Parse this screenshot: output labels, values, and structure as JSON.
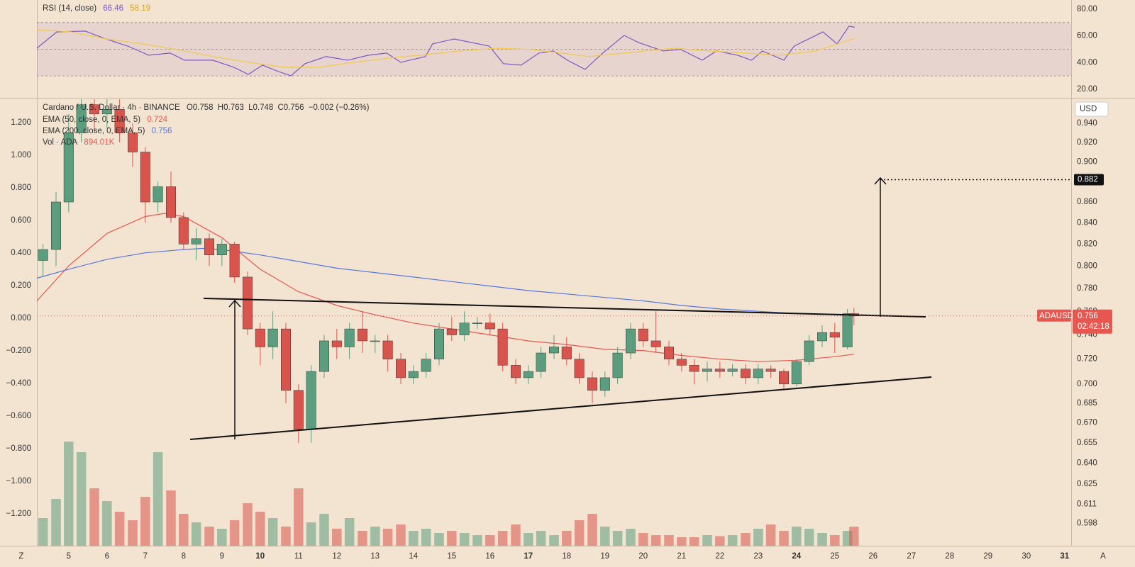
{
  "chart_data": {
    "type": "candlestick",
    "title": "Cardano / U.S. Dollar · 4h · BINANCE",
    "ohlc_legend": [
      "O0.758",
      "H0.763",
      "L0.748",
      "C0.756",
      "−0.002 (−0.26%)"
    ],
    "currency": "USD",
    "symbol": "ADAUSD",
    "last_price": 0.756,
    "countdown": "02:42:18",
    "target": 0.882,
    "footer": {
      "left": "Z",
      "right": "A"
    },
    "log_scale": true,
    "grid": false,
    "up_color": "#5b9e7f",
    "down_color": "#d9544d",
    "xlim": [
      4.17,
      31.17
    ],
    "xticks": [
      5,
      6,
      7,
      8,
      9,
      10,
      11,
      12,
      13,
      14,
      15,
      16,
      17,
      18,
      19,
      20,
      21,
      22,
      23,
      24,
      25,
      26,
      27,
      28,
      29,
      30,
      31
    ],
    "bold_xticks": [
      10,
      17,
      24,
      31
    ],
    "ylim": [
      0.583,
      0.966
    ],
    "yticks": [
      {
        "value": 0.94,
        "label": "0.940"
      },
      {
        "value": 0.92,
        "label": "0.920"
      },
      {
        "value": 0.9,
        "label": "0.900"
      },
      {
        "value": 0.88,
        "label": "0.880"
      },
      {
        "value": 0.86,
        "label": "0.860"
      },
      {
        "value": 0.84,
        "label": "0.840"
      },
      {
        "value": 0.82,
        "label": "0.820"
      },
      {
        "value": 0.8,
        "label": "0.800"
      },
      {
        "value": 0.78,
        "label": "0.780"
      },
      {
        "value": 0.76,
        "label": "0.760"
      },
      {
        "value": 0.74,
        "label": "0.740"
      },
      {
        "value": 0.72,
        "label": "0.720"
      },
      {
        "value": 0.7,
        "label": "0.700"
      },
      {
        "value": 0.685,
        "label": "0.685"
      },
      {
        "value": 0.67,
        "label": "0.670"
      },
      {
        "value": 0.655,
        "label": "0.655"
      },
      {
        "value": 0.64,
        "label": "0.640"
      },
      {
        "value": 0.625,
        "label": "0.625"
      },
      {
        "value": 0.611,
        "label": "0.611"
      },
      {
        "value": 0.598,
        "label": "0.598"
      }
    ],
    "y2lim": [
      -1.396,
      1.343
    ],
    "y2ticks": [
      {
        "value": 1.2,
        "label": "1.200"
      },
      {
        "value": 1.0,
        "label": "1.000"
      },
      {
        "value": 0.8,
        "label": "0.800"
      },
      {
        "value": 0.6,
        "label": "0.600"
      },
      {
        "value": 0.4,
        "label": "0.400"
      },
      {
        "value": 0.2,
        "label": "0.200"
      },
      {
        "value": 0,
        "label": "0.000"
      },
      {
        "value": -0.2,
        "label": "−0.200"
      },
      {
        "value": -0.4,
        "label": "−0.400"
      },
      {
        "value": -0.6,
        "label": "−0.600"
      },
      {
        "value": -0.8,
        "label": "−0.800"
      },
      {
        "value": -1.0,
        "label": "−1.000"
      },
      {
        "value": -1.2,
        "label": "−1.200"
      }
    ],
    "x": [
      4.33,
      4.67,
      5,
      5.33,
      5.67,
      6,
      6.33,
      6.67,
      7,
      7.33,
      7.67,
      8,
      8.33,
      8.67,
      9,
      9.33,
      9.67,
      10,
      10.33,
      10.67,
      11,
      11.33,
      11.67,
      12,
      12.33,
      12.67,
      13,
      13.33,
      13.67,
      14,
      14.33,
      14.67,
      15,
      15.33,
      15.67,
      16,
      16.33,
      16.67,
      17,
      17.33,
      17.67,
      18,
      18.33,
      18.67,
      19,
      19.33,
      19.67,
      20,
      20.33,
      20.67,
      21,
      21.33,
      21.67,
      22,
      22.33,
      22.67,
      23,
      23.33,
      23.67,
      24,
      24.33,
      24.67,
      25,
      25.33,
      25.5
    ],
    "open": [
      0.805,
      0.815,
      0.86,
      0.93,
      0.96,
      0.95,
      0.955,
      0.93,
      0.91,
      0.86,
      0.875,
      0.845,
      0.82,
      0.825,
      0.81,
      0.82,
      0.79,
      0.745,
      0.73,
      0.745,
      0.695,
      0.665,
      0.71,
      0.735,
      0.73,
      0.745,
      0.735,
      0.735,
      0.72,
      0.705,
      0.71,
      0.72,
      0.745,
      0.74,
      0.75,
      0.75,
      0.745,
      0.715,
      0.705,
      0.71,
      0.725,
      0.73,
      0.72,
      0.705,
      0.695,
      0.705,
      0.725,
      0.745,
      0.735,
      0.73,
      0.72,
      0.715,
      0.71,
      0.712,
      0.71,
      0.712,
      0.705,
      0.712,
      0.71,
      0.7,
      0.718,
      0.735,
      0.742,
      0.73,
      0.758
    ],
    "high": [
      0.82,
      0.87,
      0.95,
      0.966,
      0.966,
      0.966,
      0.966,
      0.94,
      0.915,
      0.88,
      0.89,
      0.85,
      0.835,
      0.83,
      0.825,
      0.822,
      0.795,
      0.75,
      0.76,
      0.75,
      0.7,
      0.715,
      0.74,
      0.745,
      0.75,
      0.76,
      0.74,
      0.74,
      0.725,
      0.715,
      0.725,
      0.75,
      0.755,
      0.76,
      0.755,
      0.758,
      0.75,
      0.72,
      0.715,
      0.73,
      0.74,
      0.738,
      0.725,
      0.71,
      0.71,
      0.73,
      0.75,
      0.75,
      0.76,
      0.735,
      0.725,
      0.72,
      0.718,
      0.718,
      0.716,
      0.716,
      0.716,
      0.715,
      0.712,
      0.72,
      0.74,
      0.748,
      0.75,
      0.762,
      0.763
    ],
    "low": [
      0.79,
      0.8,
      0.85,
      0.92,
      0.93,
      0.935,
      0.92,
      0.895,
      0.84,
      0.85,
      0.84,
      0.815,
      0.805,
      0.8,
      0.8,
      0.785,
      0.74,
      0.715,
      0.72,
      0.685,
      0.655,
      0.655,
      0.705,
      0.72,
      0.72,
      0.725,
      0.725,
      0.71,
      0.7,
      0.7,
      0.705,
      0.715,
      0.735,
      0.735,
      0.745,
      0.74,
      0.71,
      0.7,
      0.7,
      0.705,
      0.72,
      0.715,
      0.7,
      0.685,
      0.69,
      0.7,
      0.72,
      0.73,
      0.725,
      0.715,
      0.71,
      0.7,
      0.702,
      0.705,
      0.706,
      0.7,
      0.7,
      0.705,
      0.695,
      0.698,
      0.715,
      0.73,
      0.725,
      0.728,
      0.748
    ],
    "close": [
      0.815,
      0.86,
      0.93,
      0.96,
      0.95,
      0.955,
      0.93,
      0.91,
      0.86,
      0.875,
      0.845,
      0.82,
      0.825,
      0.81,
      0.82,
      0.79,
      0.745,
      0.73,
      0.745,
      0.695,
      0.665,
      0.71,
      0.735,
      0.73,
      0.745,
      0.735,
      0.735,
      0.72,
      0.705,
      0.71,
      0.72,
      0.745,
      0.74,
      0.75,
      0.75,
      0.745,
      0.715,
      0.705,
      0.71,
      0.725,
      0.73,
      0.72,
      0.705,
      0.695,
      0.705,
      0.725,
      0.745,
      0.735,
      0.73,
      0.72,
      0.715,
      0.71,
      0.712,
      0.71,
      0.712,
      0.705,
      0.712,
      0.71,
      0.7,
      0.718,
      0.735,
      0.742,
      0.738,
      0.758,
      0.756
    ],
    "indicators": [
      {
        "name": "EMA (50, close, 0, EMA, 5)",
        "value_label": "0.724",
        "color": "#e8574f",
        "x": [
          4.17,
          5,
          6,
          7,
          7.5,
          8,
          9,
          10,
          11,
          12,
          13,
          14,
          15,
          16,
          17,
          18,
          19,
          20,
          21,
          22,
          23,
          24,
          25,
          25.5
        ],
        "values": [
          0.769,
          0.8,
          0.83,
          0.846,
          0.849,
          0.846,
          0.826,
          0.797,
          0.777,
          0.765,
          0.757,
          0.75,
          0.745,
          0.74,
          0.735,
          0.732,
          0.728,
          0.727,
          0.723,
          0.72,
          0.718,
          0.719,
          0.722,
          0.724
        ]
      },
      {
        "name": "EMA (200, close, 0, EMA, 5)",
        "value_label": "0.756",
        "color": "#5677e0",
        "x": [
          4.17,
          5,
          6,
          7,
          8,
          8.5,
          9,
          10,
          11,
          12,
          13,
          14,
          15,
          16,
          17,
          18,
          19,
          20,
          21,
          22,
          23,
          24,
          25,
          25.5
        ],
        "values": [
          0.789,
          0.797,
          0.806,
          0.812,
          0.815,
          0.816,
          0.815,
          0.81,
          0.804,
          0.798,
          0.794,
          0.79,
          0.786,
          0.782,
          0.778,
          0.775,
          0.772,
          0.769,
          0.765,
          0.762,
          0.76,
          0.758,
          0.757,
          0.756
        ]
      }
    ],
    "volume": {
      "name": "Vol · ADA",
      "value_label": "894.01K",
      "ylim": [
        0,
        6000
      ],
      "values": [
        1300,
        2200,
        4900,
        4400,
        2700,
        2100,
        1600,
        1200,
        2300,
        4400,
        2600,
        1500,
        1100,
        900,
        800,
        1200,
        2000,
        1600,
        1300,
        900,
        2700,
        1100,
        1500,
        800,
        1300,
        700,
        900,
        800,
        1000,
        700,
        800,
        600,
        700,
        600,
        500,
        500,
        700,
        1000,
        600,
        700,
        500,
        700,
        1200,
        1500,
        900,
        700,
        800,
        600,
        500,
        500,
        400,
        400,
        500,
        450,
        500,
        600,
        800,
        1000,
        700,
        900,
        800,
        600,
        500,
        700,
        894.01
      ]
    },
    "rsi": {
      "title": "RSI (14, close)",
      "ylim": [
        13.6,
        86.9
      ],
      "band": [
        30,
        70
      ],
      "midline": 50,
      "band_color": "#7e57c2",
      "yticks": [
        {
          "value": 80,
          "label": "80.00"
        },
        {
          "value": 60,
          "label": "60.00"
        },
        {
          "value": 40,
          "label": "40.00"
        },
        {
          "value": 20,
          "label": "20.00"
        }
      ],
      "series": [
        {
          "value_label": "66.46",
          "color": "#7e57c2",
          "x": [
            4.17,
            4.69,
            5.43,
            5.98,
            6.54,
            7.09,
            7.65,
            8.02,
            8.76,
            9.31,
            9.69,
            10.06,
            10.43,
            10.8,
            11.17,
            11.72,
            12.28,
            12.83,
            13.3,
            13.67,
            14.31,
            14.5,
            15.06,
            15.98,
            16.35,
            16.81,
            17.28,
            17.65,
            18.02,
            18.48,
            18.94,
            19.5,
            19.87,
            20.52,
            20.98,
            21.54,
            21.91,
            22.46,
            22.83,
            23.11,
            23.67,
            23.94,
            24.69,
            25.06,
            25.37,
            25.52
          ],
          "values": [
            50.8,
            63.0,
            63.6,
            57.7,
            52.4,
            45.5,
            47.1,
            41.8,
            41.8,
            36.5,
            31.2,
            38.1,
            33.8,
            30.1,
            39.2,
            44.5,
            41.8,
            45.5,
            47.1,
            40.2,
            44.5,
            54.0,
            57.7,
            52.4,
            39.2,
            38.1,
            47.1,
            48.7,
            41.8,
            34.9,
            47.1,
            60.4,
            55.1,
            48.7,
            49.8,
            41.8,
            48.7,
            45.5,
            41.8,
            48.7,
            41.8,
            52.4,
            63.0,
            54.0,
            67.3,
            66.46
          ]
        },
        {
          "value_label": "58.19",
          "color": "#f2c94c",
          "x": [
            4.17,
            5.06,
            5.98,
            6.91,
            7.83,
            8.76,
            9.69,
            10.61,
            11.54,
            12.46,
            13.39,
            14.31,
            15.24,
            16.17,
            17.09,
            18.02,
            18.57,
            19.5,
            20.8,
            21.72,
            22.65,
            23.57,
            24.5,
            25.52
          ],
          "values": [
            64.6,
            63.0,
            57.7,
            54.0,
            49.8,
            44.5,
            40.2,
            36.5,
            36.5,
            40.2,
            43.4,
            46.0,
            48.7,
            50.8,
            49.8,
            46.6,
            44.5,
            47.1,
            50.8,
            48.7,
            47.1,
            45.5,
            48.7,
            58.19
          ]
        }
      ]
    }
  }
}
